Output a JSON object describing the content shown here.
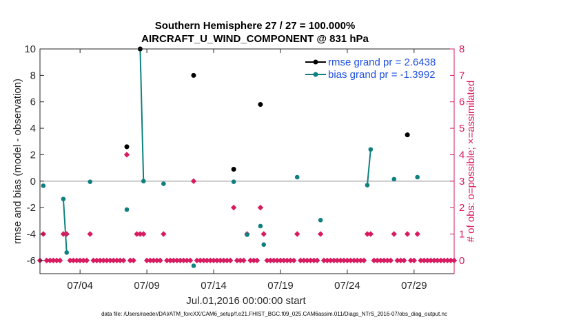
{
  "chart_data": {
    "type": "scatter",
    "title": "Southern Hemisphere 27 / 27 = 100.000%",
    "subtitle": "AIRCRAFT_U_WIND_COMPONENT @ 831 hPa",
    "xlabel": "Jul.01,2016 00:00:00 start",
    "ylabel_left": "rmse and bias (model - observation)",
    "ylabel_right": "# of obs: o=possible; ×=assimilated",
    "xlim": [
      0,
      31
    ],
    "ylim_left": [
      -7,
      10
    ],
    "ylim_right": [
      -0.5,
      8
    ],
    "x_ticks": [
      {
        "pos": 3,
        "label": "07/04"
      },
      {
        "pos": 8,
        "label": "07/09"
      },
      {
        "pos": 13,
        "label": "07/14"
      },
      {
        "pos": 18,
        "label": "07/19"
      },
      {
        "pos": 23,
        "label": "07/24"
      },
      {
        "pos": 28,
        "label": "07/29"
      }
    ],
    "y_ticks_left": [
      10,
      8,
      6,
      4,
      2,
      0,
      -2,
      -4,
      -6
    ],
    "y_ticks_right": [
      8,
      7,
      6,
      5,
      4,
      3,
      2,
      1,
      0
    ],
    "zero_line": 0,
    "series": [
      {
        "name": "rmse",
        "legend": "rmse grand pr = 2.6438",
        "color": "#000000",
        "axis": "left",
        "points": [
          [
            6.5,
            2.6
          ],
          [
            7.5,
            10.0
          ],
          [
            11.5,
            8.0
          ],
          [
            14.5,
            0.9
          ],
          [
            16.5,
            5.8
          ],
          [
            27.5,
            3.5
          ]
        ],
        "segments": []
      },
      {
        "name": "bias",
        "legend": "bias grand pr = -1.3992",
        "color": "#0f8080",
        "axis": "left",
        "points": [
          [
            0.25,
            -0.35
          ],
          [
            1.75,
            -1.35
          ],
          [
            2.0,
            -5.4
          ],
          [
            3.75,
            -0.05
          ],
          [
            6.5,
            -2.15
          ],
          [
            7.5,
            10.0
          ],
          [
            7.75,
            0.0
          ],
          [
            9.25,
            -0.2
          ],
          [
            11.5,
            -6.4
          ],
          [
            14.5,
            -0.05
          ],
          [
            15.5,
            -4.05
          ],
          [
            16.5,
            -3.4
          ],
          [
            16.75,
            -4.8
          ],
          [
            19.25,
            0.3
          ],
          [
            21.0,
            -2.95
          ],
          [
            24.5,
            -0.3
          ],
          [
            24.75,
            2.4
          ],
          [
            26.5,
            0.15
          ],
          [
            27.5,
            3.5
          ],
          [
            28.25,
            0.3
          ]
        ],
        "segments": [
          [
            [
              1.75,
              -1.35
            ],
            [
              2.0,
              -5.4
            ]
          ],
          [
            [
              7.5,
              10.0
            ],
            [
              7.75,
              0.0
            ]
          ],
          [
            [
              24.5,
              -0.3
            ],
            [
              24.75,
              2.4
            ]
          ]
        ]
      },
      {
        "name": "obs possible / assimilated",
        "color": "#d81b60",
        "axis": "right",
        "points": [
          [
            0.25,
            1
          ],
          [
            1.75,
            1
          ],
          [
            2.0,
            1
          ],
          [
            3.75,
            1
          ],
          [
            6.5,
            4
          ],
          [
            7.25,
            1
          ],
          [
            7.5,
            1
          ],
          [
            7.75,
            1
          ],
          [
            9.25,
            1
          ],
          [
            11.5,
            3
          ],
          [
            14.5,
            2
          ],
          [
            15.5,
            1
          ],
          [
            16.5,
            2
          ],
          [
            16.75,
            1
          ],
          [
            19.25,
            1
          ],
          [
            21.0,
            1
          ],
          [
            24.5,
            1
          ],
          [
            24.75,
            1
          ],
          [
            26.5,
            1
          ],
          [
            27.5,
            1
          ],
          [
            28.25,
            1
          ]
        ]
      }
    ]
  },
  "footer": "data file: /Users/raeder/DAI/ATM_forcXX/CAM6_setup/f.e21.FHIST_BGC.f09_025.CAM6assim.011/Diags_NTrS_2016-07/obs_diag_output.nc",
  "colors": {
    "rmse": "#000000",
    "bias": "#0f8080",
    "obs": "#d81b60",
    "legend_text": "#1f4fe0"
  }
}
